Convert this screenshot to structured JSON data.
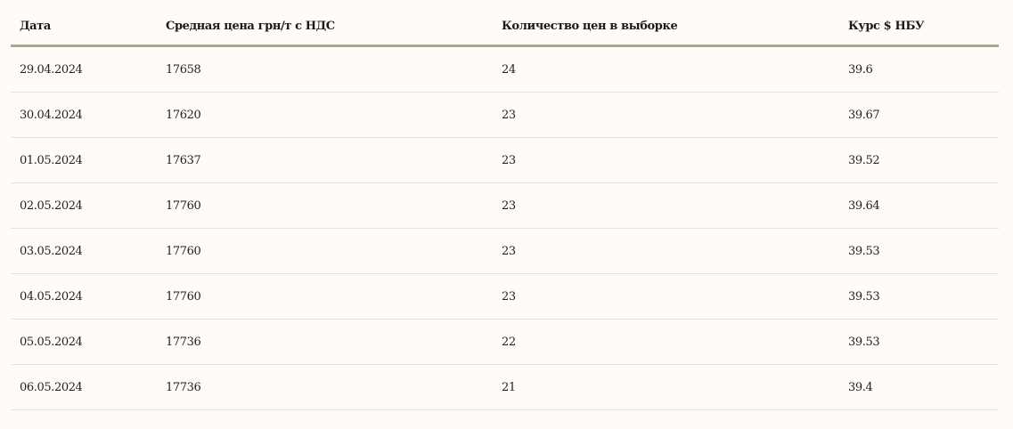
{
  "table": {
    "headers": [
      "Дата",
      "Средная цена грн/т с НДС",
      "Количество цен в выборке",
      "Курс $ НБУ"
    ],
    "rows": [
      [
        "29.04.2024",
        "17658",
        "24",
        "39.6"
      ],
      [
        "30.04.2024",
        "17620",
        "23",
        "39.67"
      ],
      [
        "01.05.2024",
        "17637",
        "23",
        "39.52"
      ],
      [
        "02.05.2024",
        "17760",
        "23",
        "39.64"
      ],
      [
        "03.05.2024",
        "17760",
        "23",
        "39.53"
      ],
      [
        "04.05.2024",
        "17760",
        "23",
        "39.53"
      ],
      [
        "05.05.2024",
        "17736",
        "22",
        "39.53"
      ],
      [
        "06.05.2024",
        "17736",
        "21",
        "39.4"
      ]
    ]
  }
}
